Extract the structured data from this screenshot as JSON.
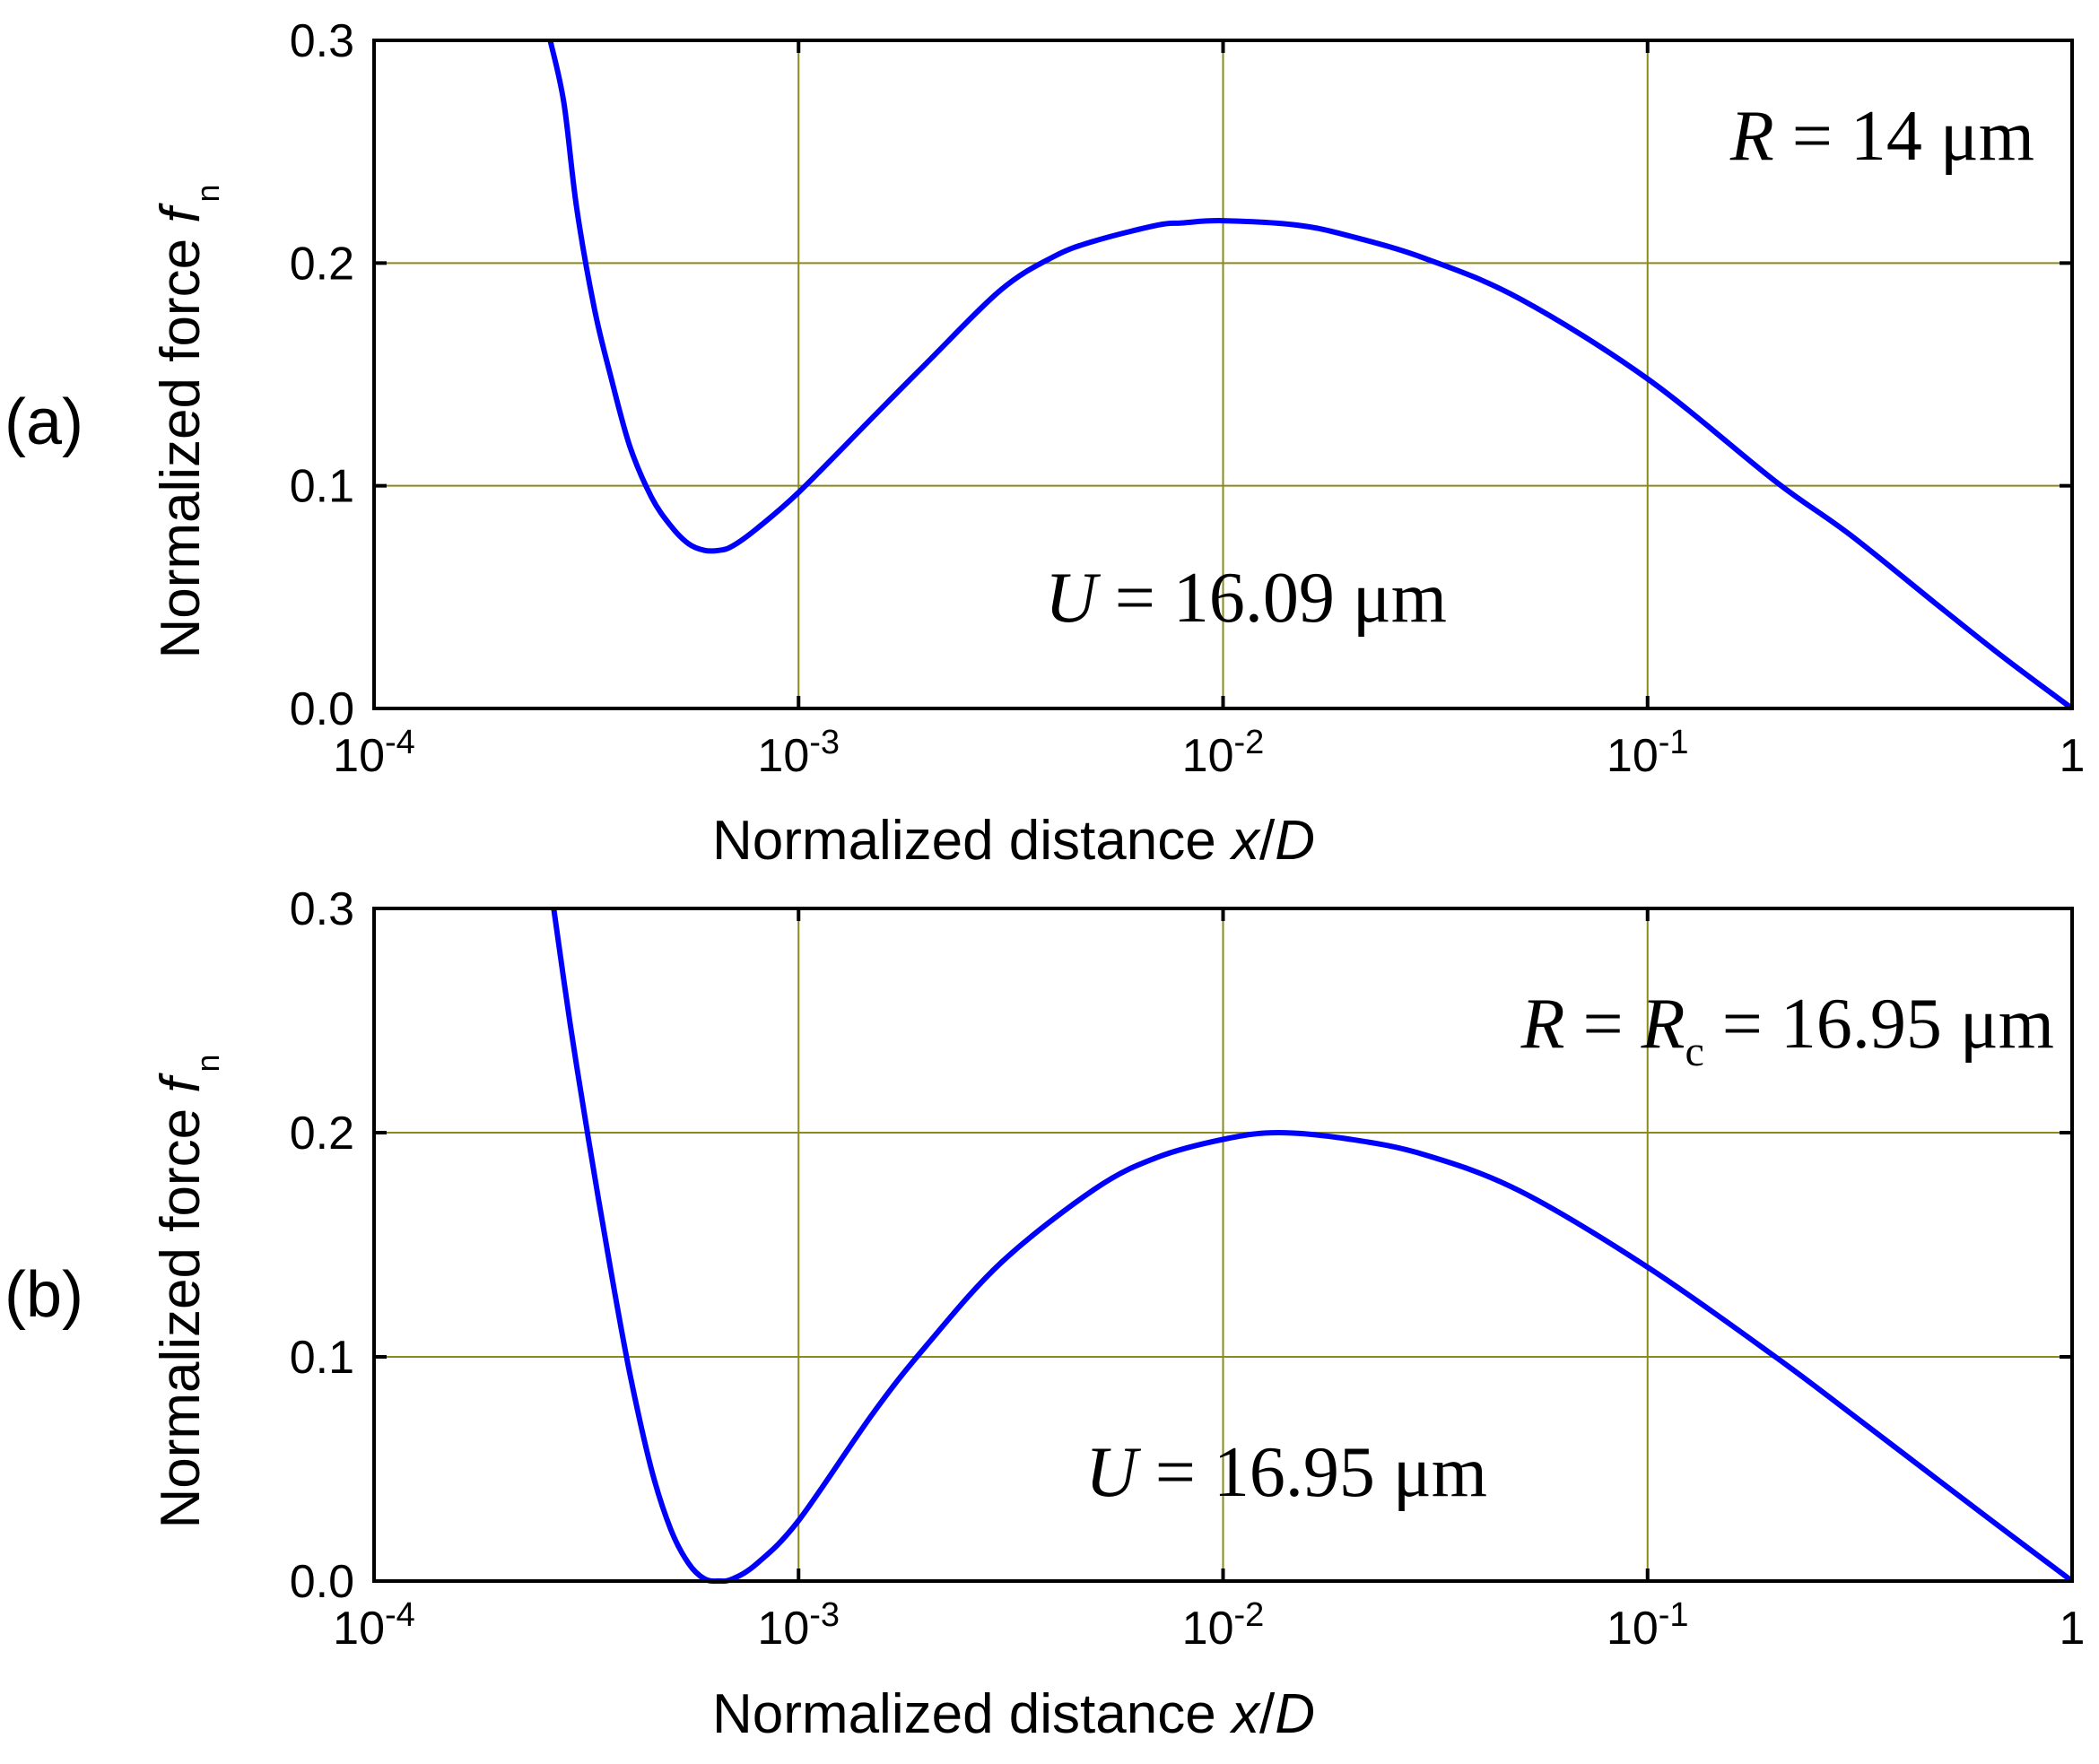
{
  "chart_data": [
    {
      "type": "line",
      "panel_label": "(a)",
      "xscale": "log",
      "xlim": [
        0.0001,
        1
      ],
      "ylim": [
        0,
        0.3
      ],
      "xticks": [
        {
          "base": "10",
          "exp": "-4"
        },
        {
          "base": "10",
          "exp": "-3"
        },
        {
          "base": "10",
          "exp": "-2"
        },
        {
          "base": "10",
          "exp": "-1"
        },
        {
          "base": "1",
          "exp": ""
        }
      ],
      "yticks": [
        "0.0",
        "0.1",
        "0.2",
        "0.3"
      ],
      "xlabel": {
        "main": "Normalized distance ",
        "italic": "x",
        "slash": "/",
        "italic2": "D"
      },
      "ylabel": {
        "main": "Normalized force ",
        "italic": "f",
        "sub": "n"
      },
      "annotations": {
        "top": {
          "v1": "R",
          "eq1": " = 14 μm"
        },
        "mid": {
          "v1": "U",
          "eq1": " = 16.09 μm"
        }
      },
      "series": [
        {
          "name": "f_n",
          "color": "#0000ff",
          "points": [
            [
              0.00026,
              0.3
            ],
            [
              0.00028,
              0.272
            ],
            [
              0.0003,
              0.225
            ],
            [
              0.00033,
              0.18
            ],
            [
              0.00036,
              0.15
            ],
            [
              0.0004,
              0.118
            ],
            [
              0.00045,
              0.095
            ],
            [
              0.0005,
              0.082
            ],
            [
              0.00055,
              0.074
            ],
            [
              0.0006,
              0.071
            ],
            [
              0.00065,
              0.071
            ],
            [
              0.0007,
              0.073
            ],
            [
              0.0008,
              0.081
            ],
            [
              0.001,
              0.097
            ],
            [
              0.0015,
              0.131
            ],
            [
              0.002,
              0.155
            ],
            [
              0.003,
              0.188
            ],
            [
              0.004,
              0.203
            ],
            [
              0.005,
              0.21
            ],
            [
              0.007,
              0.217
            ],
            [
              0.008,
              0.218
            ],
            [
              0.01,
              0.219
            ],
            [
              0.015,
              0.217
            ],
            [
              0.02,
              0.212
            ],
            [
              0.03,
              0.202
            ],
            [
              0.05,
              0.184
            ],
            [
              0.1,
              0.148
            ],
            [
              0.2,
              0.102
            ],
            [
              0.3,
              0.078
            ],
            [
              0.5,
              0.044
            ],
            [
              0.7,
              0.022
            ],
            [
              1.0,
              0.0
            ]
          ]
        }
      ]
    },
    {
      "type": "line",
      "panel_label": "(b)",
      "xscale": "log",
      "xlim": [
        0.0001,
        1
      ],
      "ylim": [
        0,
        0.3
      ],
      "xticks": [
        {
          "base": "10",
          "exp": "-4"
        },
        {
          "base": "10",
          "exp": "-3"
        },
        {
          "base": "10",
          "exp": "-2"
        },
        {
          "base": "10",
          "exp": "-1"
        },
        {
          "base": "1",
          "exp": ""
        }
      ],
      "yticks": [
        "0.0",
        "0.1",
        "0.2",
        "0.3"
      ],
      "xlabel": {
        "main": "Normalized distance ",
        "italic": "x",
        "slash": "/",
        "italic2": "D"
      },
      "ylabel": {
        "main": "Normalized force ",
        "italic": "f",
        "sub": "n"
      },
      "annotations": {
        "top": {
          "v1": "R",
          "eq1": " = ",
          "v2": "R",
          "sub2": "c",
          "eq2": " = 16.95 μm"
        },
        "mid": {
          "v1": "U",
          "eq1": " = 16.95 μm"
        }
      },
      "series": [
        {
          "name": "f_n",
          "color": "#0000ff",
          "points": [
            [
              0.000265,
              0.3
            ],
            [
              0.00029,
              0.248
            ],
            [
              0.00032,
              0.197
            ],
            [
              0.00036,
              0.14
            ],
            [
              0.0004,
              0.093
            ],
            [
              0.00045,
              0.05
            ],
            [
              0.0005,
              0.023
            ],
            [
              0.00055,
              0.008
            ],
            [
              0.0006,
              0.001
            ],
            [
              0.00065,
              0.0
            ],
            [
              0.0007,
              0.001
            ],
            [
              0.0008,
              0.008
            ],
            [
              0.001,
              0.027
            ],
            [
              0.0015,
              0.075
            ],
            [
              0.002,
              0.105
            ],
            [
              0.003,
              0.142
            ],
            [
              0.005,
              0.175
            ],
            [
              0.007,
              0.189
            ],
            [
              0.01,
              0.197
            ],
            [
              0.0135,
              0.2
            ],
            [
              0.02,
              0.197
            ],
            [
              0.03,
              0.19
            ],
            [
              0.05,
              0.174
            ],
            [
              0.1,
              0.14
            ],
            [
              0.2,
              0.1
            ],
            [
              0.3,
              0.075
            ],
            [
              0.5,
              0.043
            ],
            [
              0.7,
              0.022
            ],
            [
              1.0,
              0.0
            ]
          ]
        }
      ]
    }
  ]
}
